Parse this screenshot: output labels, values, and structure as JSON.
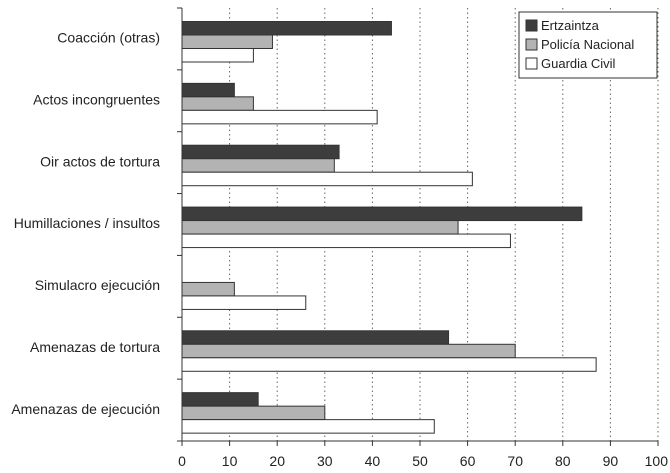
{
  "chart_data": {
    "type": "bar",
    "orientation": "horizontal",
    "categories": [
      "Coacción (otras)",
      "Actos incongruentes",
      "Oir actos de tortura",
      "Humillaciones / insultos",
      "Simulacro ejecución",
      "Amenazas de tortura",
      "Amenazas de ejecución"
    ],
    "series": [
      {
        "name": "Ertzaintza",
        "color": "#3d3d3d",
        "values": [
          44,
          11,
          33,
          84,
          0,
          56,
          16
        ]
      },
      {
        "name": "Policía Nacional",
        "color": "#b3b3b3",
        "values": [
          19,
          15,
          32,
          58,
          11,
          70,
          30
        ]
      },
      {
        "name": "Guardia Civil",
        "color": "#ffffff",
        "values": [
          15,
          41,
          61,
          69,
          26,
          87,
          53
        ]
      }
    ],
    "x_ticks": [
      "0",
      "10",
      "20",
      "30",
      "40",
      "50",
      "60",
      "70",
      "80",
      "90",
      "100"
    ],
    "xlim": [
      0,
      100
    ],
    "grid": "vertical dotted",
    "legend_position": "top-right"
  }
}
